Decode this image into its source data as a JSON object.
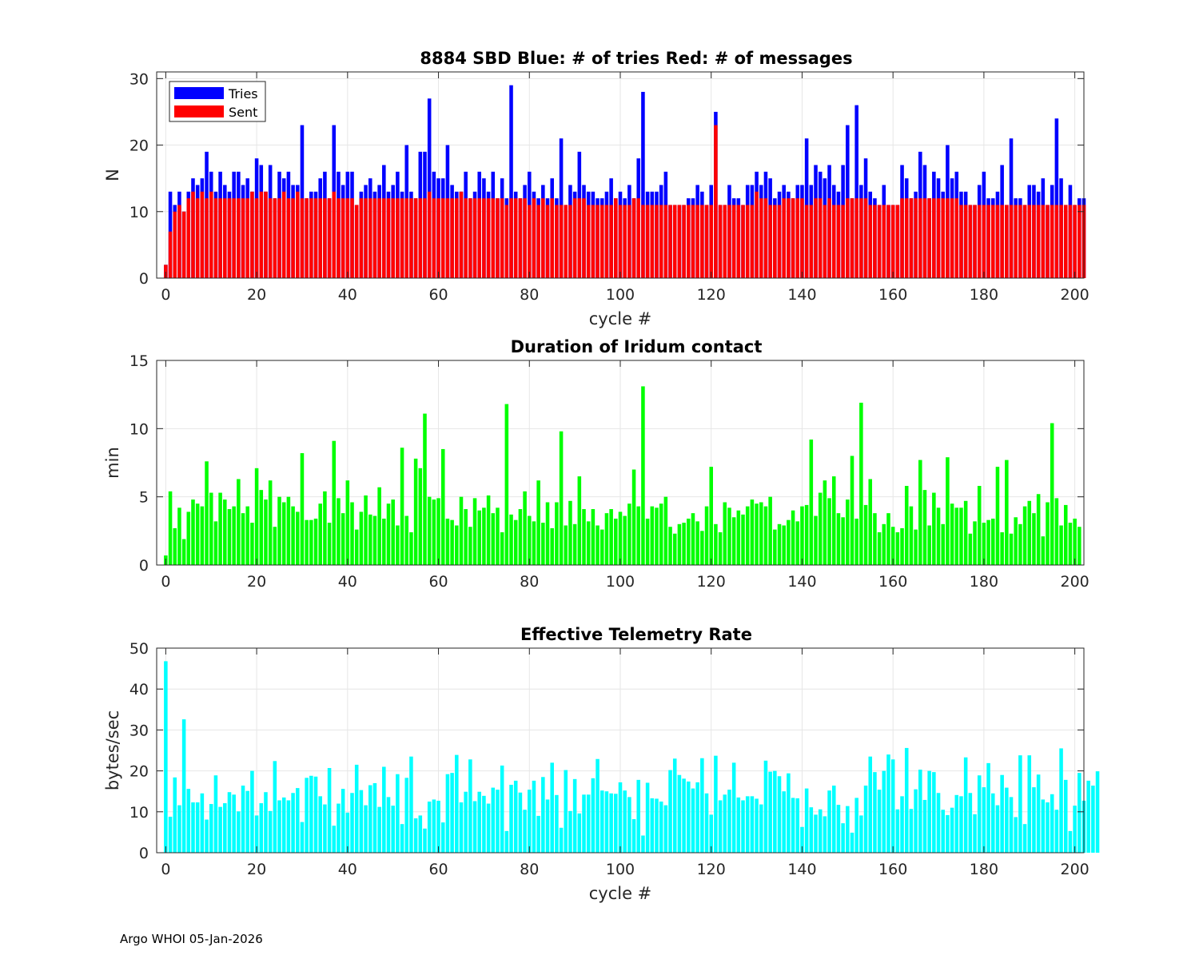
{
  "chart_data": [
    {
      "type": "bar",
      "title": "8884 SBD  Blue: # of tries   Red: # of messages",
      "xlabel": "cycle #",
      "ylabel": "N",
      "xlim": [
        -2,
        202
      ],
      "ylim": [
        0,
        31
      ],
      "xticks": [
        0,
        20,
        40,
        60,
        80,
        100,
        120,
        140,
        160,
        180,
        200
      ],
      "yticks": [
        0,
        10,
        20,
        30
      ],
      "grid": true,
      "legend_position": "top-left",
      "x_start": 0,
      "series": [
        {
          "name": "Tries",
          "color": "#0000ff",
          "values": [
            2,
            13,
            11,
            13,
            10,
            13,
            15,
            14,
            15,
            19,
            16,
            13,
            16,
            14,
            13,
            16,
            16,
            14,
            15,
            13,
            18,
            17,
            13,
            17,
            12,
            16,
            15,
            16,
            14,
            14,
            23,
            12,
            13,
            13,
            15,
            16,
            12,
            23,
            16,
            14,
            16,
            16,
            11,
            13,
            14,
            15,
            13,
            14,
            17,
            13,
            14,
            16,
            13,
            20,
            13,
            12,
            19,
            19,
            27,
            16,
            15,
            15,
            20,
            14,
            13,
            13,
            16,
            12,
            13,
            16,
            15,
            13,
            16,
            12,
            15,
            12,
            29,
            13,
            12,
            14,
            16,
            13,
            12,
            14,
            12,
            15,
            12,
            21,
            11,
            14,
            13,
            19,
            14,
            13,
            13,
            12,
            12,
            13,
            15,
            12,
            13,
            12,
            14,
            12,
            18,
            28,
            13,
            13,
            13,
            14,
            16,
            11,
            11,
            11,
            11,
            12,
            12,
            14,
            13,
            11,
            14,
            25,
            11,
            11,
            14,
            12,
            12,
            11,
            14,
            14,
            16,
            14,
            16,
            15,
            12,
            13,
            14,
            13,
            12,
            14,
            14,
            21,
            14,
            17,
            16,
            15,
            17,
            14,
            13,
            17,
            23,
            12,
            26,
            14,
            18,
            13,
            12,
            11,
            14,
            11,
            11,
            11,
            17,
            15,
            12,
            13,
            19,
            17,
            12,
            16,
            15,
            13,
            20,
            15,
            16,
            13,
            13,
            11,
            11,
            14,
            16,
            12,
            12,
            13,
            17,
            11,
            21,
            12,
            12,
            11,
            14,
            14,
            13,
            15,
            11,
            14,
            24,
            15,
            11,
            14,
            11,
            12,
            12
          ]
        },
        {
          "name": "Sent",
          "color": "#ff0000",
          "values": [
            2,
            7,
            10,
            11,
            10,
            12,
            13,
            12,
            13,
            12,
            13,
            12,
            12,
            12,
            12,
            12,
            12,
            12,
            12,
            13,
            12,
            13,
            13,
            12,
            12,
            12,
            13,
            12,
            12,
            13,
            12,
            12,
            12,
            12,
            12,
            12,
            12,
            13,
            12,
            12,
            12,
            12,
            11,
            12,
            12,
            12,
            12,
            12,
            12,
            12,
            12,
            12,
            12,
            12,
            12,
            12,
            12,
            12,
            13,
            12,
            12,
            12,
            12,
            12,
            12,
            13,
            12,
            12,
            12,
            12,
            12,
            12,
            12,
            12,
            12,
            11,
            12,
            12,
            12,
            12,
            11,
            12,
            11,
            12,
            11,
            12,
            11,
            11,
            11,
            11,
            12,
            12,
            12,
            11,
            11,
            11,
            11,
            11,
            11,
            12,
            11,
            11,
            11,
            12,
            12,
            11,
            11,
            11,
            11,
            11,
            11,
            11,
            11,
            11,
            11,
            11,
            11,
            11,
            11,
            11,
            11,
            23,
            11,
            11,
            11,
            11,
            11,
            11,
            11,
            11,
            13,
            12,
            12,
            11,
            11,
            11,
            12,
            12,
            12,
            12,
            12,
            11,
            11,
            12,
            12,
            11,
            12,
            11,
            11,
            11,
            12,
            12,
            12,
            12,
            12,
            11,
            11,
            11,
            11,
            11,
            11,
            11,
            12,
            12,
            12,
            12,
            12,
            12,
            12,
            12,
            12,
            12,
            12,
            12,
            12,
            11,
            11,
            11,
            11,
            11,
            11,
            11,
            11,
            11,
            11,
            11,
            11,
            11,
            11,
            11,
            11,
            11,
            11,
            11,
            11,
            11,
            11,
            11,
            11,
            11,
            11,
            11,
            11
          ]
        }
      ]
    },
    {
      "type": "bar",
      "title": "Duration of Iridum contact",
      "xlabel": "",
      "ylabel": "min",
      "xlim": [
        -2,
        202
      ],
      "ylim": [
        0,
        15
      ],
      "xticks": [
        0,
        20,
        40,
        60,
        80,
        100,
        120,
        140,
        160,
        180,
        200
      ],
      "yticks": [
        0,
        5,
        10,
        15
      ],
      "grid": true,
      "x_start": 0,
      "series": [
        {
          "name": "Duration",
          "color": "#00ff00",
          "values": [
            0.7,
            5.4,
            2.7,
            4.2,
            1.9,
            3.9,
            4.8,
            4.5,
            4.3,
            7.6,
            5.3,
            3.2,
            5.3,
            4.8,
            4.1,
            4.3,
            6.3,
            3.8,
            4.3,
            3.1,
            7.1,
            5.5,
            4.8,
            6.2,
            2.8,
            5.0,
            4.6,
            5.0,
            4.3,
            3.9,
            8.2,
            3.3,
            3.3,
            3.4,
            4.5,
            5.4,
            3.1,
            9.1,
            4.9,
            3.8,
            6.2,
            4.6,
            2.6,
            3.9,
            5.1,
            3.7,
            3.6,
            5.7,
            3.4,
            4.5,
            4.8,
            2.9,
            8.6,
            3.6,
            2.4,
            7.8,
            7.1,
            11.1,
            5.0,
            4.8,
            4.9,
            8.5,
            3.4,
            3.3,
            2.9,
            5.0,
            4.1,
            2.8,
            4.9,
            4.0,
            4.2,
            5.1,
            3.8,
            4.2,
            2.4,
            11.8,
            3.7,
            3.3,
            4.1,
            5.4,
            3.6,
            3.2,
            6.2,
            3.1,
            4.6,
            2.7,
            4.6,
            9.8,
            2.9,
            4.7,
            3.0,
            6.5,
            4.1,
            3.2,
            4.1,
            2.9,
            2.6,
            3.8,
            4.1,
            3.4,
            3.9,
            3.6,
            4.5,
            7.0,
            4.3,
            13.1,
            3.4,
            4.3,
            4.2,
            4.5,
            5.0,
            2.8,
            2.3,
            3.0,
            3.1,
            3.4,
            3.8,
            3.2,
            2.5,
            4.3,
            7.2,
            3.0,
            2.4,
            4.6,
            4.2,
            3.5,
            4.0,
            3.7,
            4.3,
            4.8,
            4.5,
            4.6,
            4.3,
            5.0,
            2.6,
            3.0,
            2.9,
            3.3,
            4.0,
            3.2,
            4.3,
            4.4,
            9.2,
            3.6,
            5.3,
            6.2,
            4.9,
            6.5,
            3.8,
            3.5,
            4.8,
            8.0,
            3.4,
            11.9,
            4.4,
            6.3,
            3.8,
            2.4,
            3.0,
            3.8,
            2.8,
            2.4,
            2.7,
            5.8,
            4.3,
            2.6,
            7.7,
            5.5,
            2.9,
            5.3,
            4.2,
            3.0,
            7.9,
            4.5,
            4.2,
            4.2,
            4.7,
            2.3,
            3.2,
            5.8,
            3.1,
            3.3,
            3.4,
            7.2,
            2.4,
            7.7,
            2.3,
            3.5,
            3.0,
            4.3,
            4.7,
            3.8,
            5.2,
            2.1,
            4.6,
            10.4,
            4.9,
            2.9,
            4.4,
            3.1,
            3.4,
            2.8
          ]
        }
      ]
    },
    {
      "type": "bar",
      "title": "Effective Telemetry Rate",
      "xlabel": "cycle #",
      "ylabel": "bytes/sec",
      "xlim": [
        -2,
        202
      ],
      "ylim": [
        0,
        50
      ],
      "xticks": [
        0,
        20,
        40,
        60,
        80,
        100,
        120,
        140,
        160,
        180,
        200
      ],
      "yticks": [
        0,
        10,
        20,
        30,
        40,
        50
      ],
      "grid": true,
      "x_start": 0,
      "series": [
        {
          "name": "Rate",
          "color": "#00ffff",
          "values": [
            46.8,
            8.8,
            18.4,
            11.6,
            32.6,
            15.6,
            12.3,
            12.3,
            14.5,
            8.1,
            11.9,
            18.9,
            11.2,
            12.1,
            14.8,
            14.2,
            10.1,
            16.4,
            15.1,
            20.0,
            9.1,
            12.1,
            14.8,
            10.2,
            22.4,
            12.8,
            13.5,
            12.8,
            14.6,
            15.8,
            7.5,
            18.3,
            18.8,
            18.6,
            13.8,
            11.8,
            20.7,
            6.6,
            12.0,
            15.6,
            9.8,
            14.6,
            21.5,
            15.3,
            11.6,
            16.5,
            17.0,
            11.2,
            21.0,
            13.6,
            11.5,
            19.2,
            7.0,
            18.3,
            23.5,
            8.4,
            9.1,
            5.9,
            12.5,
            13.0,
            12.7,
            7.4,
            19.2,
            19.5,
            23.9,
            12.3,
            14.9,
            22.8,
            12.6,
            14.9,
            13.9,
            12.0,
            15.9,
            15.4,
            21.3,
            5.3,
            16.6,
            17.6,
            14.7,
            10.5,
            15.4,
            17.6,
            9.0,
            18.5,
            13.0,
            22.0,
            14.1,
            6.1,
            20.2,
            10.2,
            18.0,
            9.6,
            14.2,
            14.2,
            18.2,
            22.9,
            15.2,
            15.0,
            14.5,
            14.4,
            17.2,
            15.2,
            13.6,
            8.2,
            17.8,
            4.2,
            17.1,
            13.3,
            13.2,
            12.5,
            11.6,
            20.2,
            23.0,
            19.0,
            18.1,
            17.4,
            15.7,
            17.2,
            23.1,
            14.5,
            9.3,
            23.7,
            12.8,
            14.2,
            15.4,
            22.0,
            13.5,
            12.8,
            13.8,
            13.8,
            13.2,
            11.8,
            22.5,
            19.8,
            20.0,
            18.7,
            15.0,
            19.4,
            13.4,
            13.3,
            6.3,
            15.7,
            11.1,
            9.3,
            10.6,
            8.9,
            15.2,
            16.4,
            11.7,
            7.2,
            11.4,
            4.9,
            13.4,
            9.1,
            16.4,
            23.5,
            19.7,
            15.4,
            20.0,
            24.0,
            22.8,
            10.6,
            13.8,
            25.6,
            10.7,
            15.5,
            20.3,
            12.9,
            20.0,
            19.7,
            14.6,
            10.5,
            9.2,
            11.0,
            14.1,
            13.8,
            23.3,
            14.6,
            9.4,
            18.9,
            16.0,
            21.9,
            14.5,
            11.6,
            19.0,
            15.9,
            13.6,
            8.7,
            23.8,
            7.0,
            23.8,
            16.0,
            19.1,
            13.0,
            12.3,
            14.3,
            10.5,
            25.5,
            17.8,
            5.3,
            11.5,
            19.5,
            12.7,
            17.6,
            16.4,
            19.9
          ]
        }
      ]
    }
  ],
  "footer": {
    "text": "Argo WHOI 05-Jan-2026"
  },
  "legend": {
    "tries_label": "Tries",
    "sent_label": "Sent"
  }
}
